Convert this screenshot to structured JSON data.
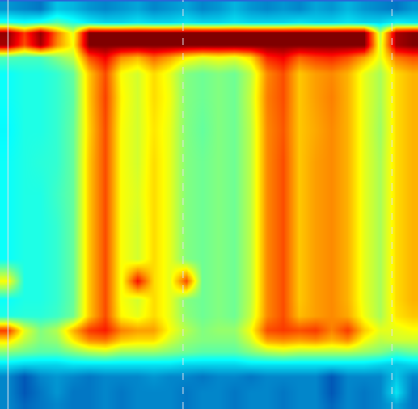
{
  "chart_data": {
    "type": "heatmap",
    "color": "Jet",
    "tick_labels": false,
    "grid": false,
    "xlim": [
      0,
      517
    ],
    "ylim": [
      506,
      0
    ],
    "zlim": [
      0,
      100
    ],
    "x": [
      10,
      30,
      50,
      70,
      90,
      110,
      130,
      150,
      170,
      190,
      210,
      230,
      250,
      270,
      290,
      310,
      330,
      350,
      370,
      390,
      410,
      430,
      450,
      470,
      490,
      510
    ],
    "y": [
      10,
      27,
      40,
      55,
      70,
      90,
      120,
      160,
      200,
      240,
      280,
      320,
      347,
      370,
      390,
      408,
      420,
      435,
      450,
      465,
      485,
      500
    ],
    "z": [
      [
        24,
        22,
        20,
        30,
        28,
        24,
        22,
        24,
        26,
        22,
        24,
        26,
        22,
        24,
        28,
        24,
        22,
        24,
        22,
        26,
        24,
        28,
        24,
        22,
        20,
        24
      ],
      [
        40,
        38,
        40,
        45,
        40,
        35,
        32,
        32,
        34,
        32,
        32,
        34,
        32,
        32,
        34,
        32,
        32,
        32,
        34,
        32,
        32,
        34,
        32,
        32,
        36,
        34
      ],
      [
        98,
        82,
        98,
        76,
        60,
        100,
        100,
        100,
        100,
        100,
        100,
        100,
        100,
        100,
        100,
        100,
        100,
        100,
        100,
        100,
        100,
        100,
        100,
        56,
        96,
        100
      ],
      [
        96,
        80,
        96,
        74,
        62,
        100,
        100,
        100,
        100,
        100,
        100,
        100,
        100,
        100,
        100,
        100,
        100,
        100,
        100,
        100,
        100,
        100,
        100,
        58,
        96,
        100
      ],
      [
        45,
        44,
        44,
        50,
        56,
        80,
        88,
        74,
        70,
        78,
        72,
        64,
        60,
        62,
        60,
        66,
        84,
        88,
        78,
        82,
        84,
        80,
        72,
        60,
        76,
        80
      ],
      [
        38,
        40,
        40,
        42,
        47,
        68,
        80,
        62,
        58,
        66,
        60,
        50,
        48,
        50,
        48,
        56,
        74,
        80,
        68,
        72,
        74,
        70,
        60,
        54,
        66,
        70
      ],
      [
        38,
        40,
        40,
        42,
        46,
        68,
        81,
        63,
        58,
        66,
        61,
        50,
        48,
        50,
        48,
        57,
        75,
        80,
        68,
        72,
        75,
        70,
        60,
        54,
        66,
        70
      ],
      [
        37,
        40,
        40,
        42,
        47,
        67,
        80,
        62,
        58,
        65,
        60,
        50,
        47,
        50,
        48,
        56,
        74,
        79,
        68,
        71,
        74,
        70,
        60,
        53,
        66,
        70
      ],
      [
        38,
        40,
        41,
        42,
        47,
        68,
        80,
        62,
        58,
        66,
        60,
        50,
        48,
        50,
        48,
        56,
        74,
        80,
        68,
        72,
        74,
        70,
        60,
        54,
        66,
        70
      ],
      [
        38,
        40,
        40,
        43,
        47,
        68,
        80,
        62,
        59,
        66,
        60,
        50,
        48,
        50,
        48,
        56,
        74,
        80,
        68,
        72,
        74,
        70,
        60,
        54,
        66,
        70
      ],
      [
        38,
        40,
        40,
        42,
        47,
        68,
        80,
        62,
        58,
        66,
        60,
        50,
        48,
        50,
        48,
        56,
        74,
        80,
        68,
        72,
        74,
        70,
        60,
        54,
        66,
        70
      ],
      [
        38,
        40,
        40,
        42,
        47,
        68,
        80,
        62,
        58,
        66,
        60,
        50,
        48,
        50,
        48,
        56,
        74,
        80,
        68,
        72,
        74,
        70,
        60,
        54,
        66,
        70
      ],
      [
        62,
        40,
        40,
        42,
        47,
        68,
        80,
        62,
        86,
        66,
        60,
        80,
        48,
        50,
        48,
        56,
        74,
        80,
        68,
        72,
        74,
        70,
        60,
        54,
        66,
        70
      ],
      [
        38,
        40,
        40,
        42,
        47,
        68,
        80,
        62,
        58,
        66,
        60,
        50,
        48,
        50,
        48,
        56,
        74,
        80,
        68,
        72,
        74,
        70,
        60,
        54,
        66,
        70
      ],
      [
        40,
        41,
        41,
        43,
        48,
        68,
        80,
        63,
        60,
        66,
        60,
        51,
        48,
        50,
        48,
        57,
        74,
        80,
        69,
        72,
        74,
        71,
        61,
        54,
        65,
        68
      ],
      [
        82,
        60,
        50,
        55,
        70,
        82,
        85,
        75,
        72,
        72,
        62,
        55,
        50,
        52,
        52,
        62,
        80,
        82,
        80,
        82,
        75,
        82,
        68,
        60,
        60,
        62
      ],
      [
        66,
        56,
        50,
        52,
        64,
        74,
        76,
        68,
        66,
        66,
        58,
        52,
        50,
        50,
        50,
        58,
        72,
        74,
        72,
        74,
        70,
        74,
        62,
        56,
        58,
        58
      ],
      [
        50,
        48,
        46,
        46,
        50,
        54,
        56,
        52,
        52,
        52,
        50,
        48,
        46,
        46,
        46,
        50,
        54,
        56,
        54,
        54,
        54,
        54,
        52,
        50,
        45,
        48
      ],
      [
        34,
        32,
        32,
        32,
        34,
        34,
        34,
        34,
        34,
        34,
        34,
        32,
        32,
        32,
        32,
        34,
        34,
        34,
        34,
        34,
        34,
        34,
        34,
        32,
        30,
        32
      ],
      [
        22,
        16,
        22,
        24,
        22,
        20,
        22,
        22,
        22,
        24,
        22,
        22,
        20,
        22,
        22,
        20,
        22,
        22,
        22,
        22,
        16,
        22,
        22,
        22,
        30,
        22
      ],
      [
        22,
        16,
        20,
        24,
        20,
        20,
        22,
        20,
        22,
        22,
        22,
        20,
        22,
        22,
        20,
        22,
        22,
        20,
        22,
        22,
        16,
        22,
        20,
        22,
        34,
        20
      ],
      [
        22,
        18,
        20,
        22,
        20,
        20,
        22,
        20,
        22,
        22,
        22,
        20,
        22,
        22,
        20,
        22,
        22,
        20,
        22,
        22,
        18,
        22,
        20,
        22,
        26,
        20
      ]
    ],
    "vlines": [
      {
        "x": 10,
        "line_style": "solid"
      },
      {
        "x": 226,
        "line_style": "dashed"
      },
      {
        "x": 485,
        "line_style": "dashed"
      }
    ]
  }
}
